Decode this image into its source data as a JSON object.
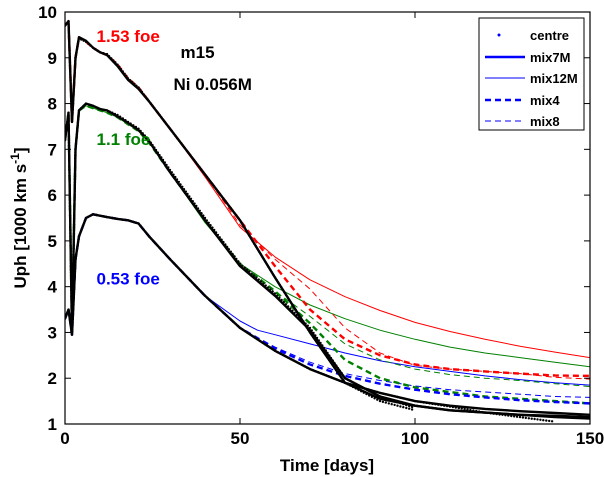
{
  "chart_data": {
    "type": "line",
    "xlabel": "Time [days]",
    "ylabel": "Uph [1000 km s",
    "ylabel_sup": "-1",
    "ylabel_close": "]",
    "xlim": [
      0,
      150
    ],
    "ylim": [
      1,
      10
    ],
    "xticks": [
      0,
      50,
      100,
      150
    ],
    "yticks": [
      1,
      2,
      3,
      4,
      5,
      6,
      7,
      8,
      9,
      10
    ],
    "grid": false,
    "legend_position": "top-right",
    "legend": [
      {
        "name": "centre",
        "style": "dot"
      },
      {
        "name": "mix7M",
        "style": "thick"
      },
      {
        "name": "mix12M",
        "style": "thin"
      },
      {
        "name": "mix4",
        "style": "thick-dash"
      },
      {
        "name": "mix8",
        "style": "thin-dash"
      }
    ],
    "annotations": [
      {
        "text": "1.53 foe",
        "color": "#ff0000",
        "x": 9,
        "y": 9.35
      },
      {
        "text": "1.1 foe",
        "color": "#008000",
        "x": 9,
        "y": 7.1
      },
      {
        "text": "0.53 foe",
        "color": "#0000ff",
        "x": 9,
        "y": 4.05
      },
      {
        "text": "m15",
        "color": "#000000",
        "x": 33,
        "y": 9.0
      },
      {
        "text": "Ni 0.056M",
        "color": "#000000",
        "x": 31,
        "y": 8.3
      }
    ],
    "series": [
      {
        "name": "centre",
        "group": "1.53 foe",
        "color": "#000000",
        "style": "dot",
        "x": [
          0,
          1,
          2,
          3,
          4,
          6,
          8,
          10,
          12,
          15,
          18,
          21,
          24,
          30,
          40,
          50,
          60,
          70,
          80,
          90,
          100
        ],
        "y": [
          9.7,
          9.8,
          7.6,
          9.0,
          9.42,
          9.35,
          9.22,
          9.12,
          9.08,
          8.85,
          8.55,
          8.35,
          8.05,
          7.45,
          6.45,
          5.45,
          4.2,
          3.0,
          1.9,
          1.5,
          1.3
        ]
      },
      {
        "name": "mix7M",
        "group": "1.53 foe",
        "color": "#000000",
        "style": "thick",
        "x": [
          0,
          1,
          2,
          3,
          4,
          6,
          8,
          10,
          12,
          15,
          18,
          21,
          24,
          30,
          40,
          50,
          60,
          70,
          80,
          90,
          100,
          110,
          120,
          130,
          140,
          150
        ],
        "y": [
          9.7,
          9.8,
          7.6,
          9.0,
          9.45,
          9.37,
          9.22,
          9.12,
          9.06,
          8.82,
          8.52,
          8.32,
          8.05,
          7.45,
          6.45,
          5.45,
          4.2,
          3.0,
          1.9,
          1.55,
          1.4,
          1.3,
          1.25,
          1.2,
          1.15,
          1.12
        ]
      },
      {
        "name": "mix12M",
        "group": "1.53 foe",
        "color": "#ff0000",
        "style": "thin",
        "x": [
          0,
          1,
          2,
          3,
          4,
          6,
          8,
          10,
          12,
          15,
          18,
          21,
          24,
          30,
          40,
          50,
          60,
          70,
          80,
          90,
          100,
          110,
          120,
          130,
          140,
          150
        ],
        "y": [
          9.7,
          9.8,
          7.6,
          9.0,
          9.45,
          9.35,
          9.22,
          9.12,
          9.06,
          8.85,
          8.55,
          8.35,
          8.05,
          7.45,
          6.4,
          5.3,
          4.65,
          4.15,
          3.78,
          3.48,
          3.22,
          3.02,
          2.85,
          2.7,
          2.57,
          2.45
        ]
      },
      {
        "name": "mix4",
        "group": "1.53 foe",
        "color": "#ff0000",
        "style": "thick-dash",
        "x": [
          0,
          1,
          2,
          3,
          4,
          6,
          8,
          10,
          12,
          15,
          18,
          21,
          24,
          30,
          40,
          50,
          60,
          70,
          80,
          90,
          100,
          110,
          120,
          130,
          140,
          150
        ],
        "y": [
          9.7,
          9.8,
          7.6,
          9.0,
          9.45,
          9.35,
          9.22,
          9.12,
          9.06,
          8.85,
          8.55,
          8.35,
          8.05,
          7.45,
          6.45,
          5.45,
          4.45,
          3.5,
          2.85,
          2.5,
          2.3,
          2.2,
          2.15,
          2.1,
          2.06,
          2.05
        ]
      },
      {
        "name": "mix8",
        "group": "1.53 foe",
        "color": "#ff0000",
        "style": "thin-dash",
        "x": [
          0,
          1,
          2,
          3,
          4,
          6,
          8,
          10,
          12,
          15,
          18,
          21,
          24,
          30,
          40,
          50,
          60,
          70,
          80,
          90,
          100,
          110,
          120,
          130,
          140,
          150
        ],
        "y": [
          9.7,
          9.8,
          7.6,
          9.0,
          9.45,
          9.35,
          9.22,
          9.12,
          9.06,
          8.85,
          8.55,
          8.35,
          8.05,
          7.45,
          6.45,
          5.35,
          4.6,
          3.95,
          3.1,
          2.55,
          2.28,
          2.2,
          2.15,
          2.1,
          2.02,
          1.98
        ]
      },
      {
        "name": "centre",
        "group": "1.1 foe",
        "color": "#000000",
        "style": "dot",
        "x": [
          0,
          1,
          2,
          3,
          4,
          6,
          8,
          10,
          12,
          15,
          18,
          21,
          24,
          30,
          40,
          50,
          60,
          70,
          80,
          90,
          100
        ],
        "y": [
          7.2,
          7.8,
          3.0,
          7.0,
          7.85,
          8.0,
          7.95,
          7.88,
          7.85,
          7.75,
          7.6,
          7.45,
          7.2,
          6.55,
          5.5,
          4.5,
          3.85,
          3.1,
          2.0,
          1.6,
          1.35
        ]
      },
      {
        "name": "mix7M",
        "group": "1.1 foe",
        "color": "#000000",
        "style": "thick",
        "x": [
          0,
          1,
          2,
          3,
          4,
          6,
          8,
          10,
          12,
          15,
          18,
          21,
          24,
          30,
          40,
          50,
          60,
          70,
          80,
          90,
          100,
          110,
          120,
          130,
          140,
          150
        ],
        "y": [
          7.2,
          7.8,
          3.0,
          7.0,
          7.85,
          8.0,
          7.95,
          7.88,
          7.85,
          7.72,
          7.58,
          7.42,
          7.18,
          6.5,
          5.45,
          4.45,
          3.8,
          3.05,
          2.0,
          1.6,
          1.4,
          1.3,
          1.25,
          1.2,
          1.18,
          1.15
        ]
      },
      {
        "name": "mix12M",
        "group": "1.1 foe",
        "color": "#008000",
        "style": "thin",
        "x": [
          0,
          1,
          2,
          3,
          4,
          6,
          8,
          10,
          12,
          15,
          18,
          21,
          24,
          30,
          40,
          50,
          60,
          70,
          80,
          90,
          100,
          110,
          120,
          130,
          140,
          150
        ],
        "y": [
          7.2,
          7.8,
          3.0,
          7.0,
          7.85,
          7.95,
          7.9,
          7.85,
          7.8,
          7.7,
          7.55,
          7.4,
          7.15,
          6.5,
          5.4,
          4.5,
          4.0,
          3.6,
          3.3,
          3.05,
          2.85,
          2.68,
          2.55,
          2.45,
          2.35,
          2.25
        ]
      },
      {
        "name": "mix4",
        "group": "1.1 foe",
        "color": "#008000",
        "style": "thick-dash",
        "x": [
          0,
          1,
          2,
          3,
          4,
          6,
          8,
          10,
          12,
          15,
          18,
          21,
          24,
          30,
          40,
          50,
          60,
          70,
          80,
          90,
          100,
          110,
          120,
          130,
          140,
          150
        ],
        "y": [
          7.2,
          7.8,
          3.0,
          7.0,
          7.85,
          7.95,
          7.9,
          7.85,
          7.8,
          7.7,
          7.55,
          7.4,
          7.15,
          6.5,
          5.45,
          4.5,
          3.9,
          3.2,
          2.4,
          2.0,
          1.8,
          1.7,
          1.6,
          1.55,
          1.5,
          1.45
        ]
      },
      {
        "name": "mix8",
        "group": "1.1 foe",
        "color": "#008000",
        "style": "thin-dash",
        "x": [
          0,
          1,
          2,
          3,
          4,
          6,
          8,
          10,
          12,
          15,
          18,
          21,
          24,
          30,
          40,
          50,
          60,
          70,
          80,
          90,
          100,
          110,
          120,
          130,
          140,
          150
        ],
        "y": [
          7.2,
          7.8,
          3.0,
          7.0,
          7.85,
          7.95,
          7.9,
          7.85,
          7.8,
          7.7,
          7.55,
          7.4,
          7.15,
          6.5,
          5.45,
          4.5,
          3.9,
          3.35,
          2.75,
          2.4,
          2.2,
          2.08,
          2.0,
          1.95,
          1.88,
          1.82
        ]
      },
      {
        "name": "centre",
        "group": "0.53 foe",
        "color": "#000000",
        "style": "dot",
        "x": [
          0,
          1,
          2,
          3,
          4,
          6,
          8,
          10,
          12,
          15,
          18,
          21,
          24,
          30,
          40,
          50,
          60,
          70,
          80,
          90,
          100,
          110,
          120,
          130,
          140
        ],
        "y": [
          3.3,
          3.5,
          2.95,
          4.6,
          5.1,
          5.5,
          5.58,
          5.55,
          5.52,
          5.48,
          5.45,
          5.38,
          5.1,
          4.6,
          3.8,
          3.1,
          2.6,
          2.2,
          1.9,
          1.68,
          1.5,
          1.38,
          1.25,
          1.15,
          1.05
        ]
      },
      {
        "name": "mix7M",
        "group": "0.53 foe",
        "color": "#000000",
        "style": "thick",
        "x": [
          0,
          1,
          2,
          3,
          4,
          6,
          8,
          10,
          12,
          15,
          18,
          21,
          24,
          30,
          40,
          50,
          60,
          70,
          80,
          90,
          100,
          110,
          120,
          130,
          140,
          150
        ],
        "y": [
          3.3,
          3.5,
          2.95,
          4.6,
          5.1,
          5.5,
          5.58,
          5.55,
          5.52,
          5.48,
          5.45,
          5.38,
          5.1,
          4.6,
          3.8,
          3.1,
          2.6,
          2.2,
          1.9,
          1.68,
          1.5,
          1.4,
          1.33,
          1.28,
          1.24,
          1.2
        ]
      },
      {
        "name": "mix12M",
        "group": "0.53 foe",
        "color": "#0000ff",
        "style": "thin",
        "x": [
          0,
          1,
          2,
          3,
          4,
          6,
          8,
          10,
          12,
          15,
          18,
          21,
          24,
          30,
          40,
          50,
          55,
          60,
          70,
          80,
          90,
          100,
          110,
          120,
          130,
          140,
          150
        ],
        "y": [
          3.3,
          3.5,
          2.95,
          4.6,
          5.1,
          5.5,
          5.58,
          5.55,
          5.52,
          5.48,
          5.45,
          5.38,
          5.1,
          4.6,
          3.8,
          3.25,
          3.05,
          2.95,
          2.75,
          2.55,
          2.38,
          2.25,
          2.15,
          2.05,
          1.97,
          1.9,
          1.85
        ]
      },
      {
        "name": "mix4",
        "group": "0.53 foe",
        "color": "#0000ff",
        "style": "thick-dash",
        "x": [
          0,
          1,
          2,
          3,
          4,
          6,
          8,
          10,
          12,
          15,
          18,
          21,
          24,
          30,
          40,
          50,
          60,
          70,
          80,
          90,
          100,
          110,
          120,
          130,
          140,
          150
        ],
        "y": [
          3.3,
          3.5,
          2.95,
          4.6,
          5.1,
          5.5,
          5.58,
          5.55,
          5.52,
          5.48,
          5.45,
          5.38,
          5.1,
          4.6,
          3.8,
          3.1,
          2.65,
          2.3,
          2.05,
          1.88,
          1.75,
          1.65,
          1.58,
          1.52,
          1.48,
          1.45
        ]
      },
      {
        "name": "mix8",
        "group": "0.53 foe",
        "color": "#0000ff",
        "style": "thin-dash",
        "x": [
          0,
          1,
          2,
          3,
          4,
          6,
          8,
          10,
          12,
          15,
          18,
          21,
          24,
          30,
          40,
          50,
          60,
          70,
          80,
          90,
          100,
          110,
          120,
          130,
          140,
          150
        ],
        "y": [
          3.3,
          3.5,
          2.95,
          4.6,
          5.1,
          5.5,
          5.58,
          5.55,
          5.52,
          5.48,
          5.45,
          5.38,
          5.1,
          4.6,
          3.8,
          3.1,
          2.68,
          2.35,
          2.1,
          1.95,
          1.83,
          1.75,
          1.7,
          1.65,
          1.6,
          1.58
        ]
      }
    ]
  }
}
